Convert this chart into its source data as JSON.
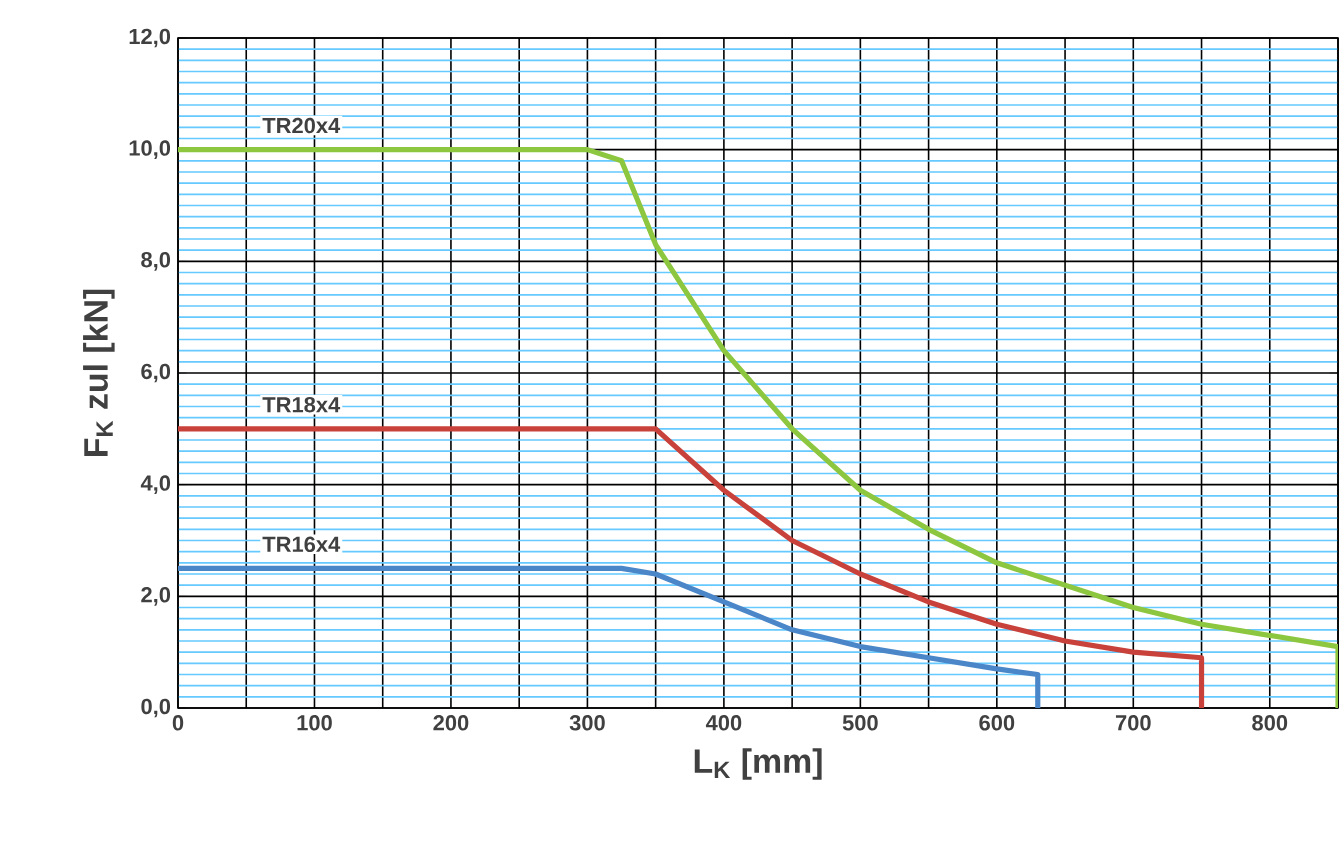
{
  "chart_data": {
    "type": "line",
    "xlabel": "L$_{K}$ [mm]",
    "ylabel": "F$_{K}$ zul [kN]",
    "xlim": [
      0,
      850
    ],
    "ylim": [
      0,
      12
    ],
    "xticks": [
      0,
      {
        "value": 50,
        "label": null
      },
      100,
      {
        "value": 150,
        "label": null
      },
      200,
      {
        "value": 250,
        "label": null
      },
      300,
      {
        "value": 350,
        "label": null
      },
      400,
      {
        "value": 450,
        "label": null
      },
      500,
      {
        "value": 550,
        "label": null
      },
      600,
      {
        "value": 650,
        "label": null
      },
      700,
      {
        "value": 750,
        "label": null
      },
      800,
      {
        "value": 850,
        "label": null
      }
    ],
    "yticks": [
      {
        "value": 0,
        "label": "0,0"
      },
      {
        "value": 0.2,
        "label": null
      },
      {
        "value": 0.4,
        "label": null
      },
      {
        "value": 0.6,
        "label": null
      },
      {
        "value": 0.8,
        "label": null
      },
      {
        "value": 1.0,
        "label": null
      },
      {
        "value": 1.2,
        "label": null
      },
      {
        "value": 1.4,
        "label": null
      },
      {
        "value": 1.6,
        "label": null
      },
      {
        "value": 1.8,
        "label": null
      },
      {
        "value": 2,
        "label": "2,0"
      },
      {
        "value": 2.2,
        "label": null
      },
      {
        "value": 2.4,
        "label": null
      },
      {
        "value": 2.6,
        "label": null
      },
      {
        "value": 2.8,
        "label": null
      },
      {
        "value": 3.0,
        "label": null
      },
      {
        "value": 3.2,
        "label": null
      },
      {
        "value": 3.4,
        "label": null
      },
      {
        "value": 3.6,
        "label": null
      },
      {
        "value": 3.8,
        "label": null
      },
      {
        "value": 4,
        "label": "4,0"
      },
      {
        "value": 4.2,
        "label": null
      },
      {
        "value": 4.4,
        "label": null
      },
      {
        "value": 4.6,
        "label": null
      },
      {
        "value": 4.8,
        "label": null
      },
      {
        "value": 5.0,
        "label": null
      },
      {
        "value": 5.2,
        "label": null
      },
      {
        "value": 5.4,
        "label": null
      },
      {
        "value": 5.6,
        "label": null
      },
      {
        "value": 5.8,
        "label": null
      },
      {
        "value": 6,
        "label": "6,0"
      },
      {
        "value": 6.2,
        "label": null
      },
      {
        "value": 6.4,
        "label": null
      },
      {
        "value": 6.6,
        "label": null
      },
      {
        "value": 6.8,
        "label": null
      },
      {
        "value": 7.0,
        "label": null
      },
      {
        "value": 7.2,
        "label": null
      },
      {
        "value": 7.4,
        "label": null
      },
      {
        "value": 7.6,
        "label": null
      },
      {
        "value": 7.8,
        "label": null
      },
      {
        "value": 8,
        "label": "8,0"
      },
      {
        "value": 8.2,
        "label": null
      },
      {
        "value": 8.4,
        "label": null
      },
      {
        "value": 8.6,
        "label": null
      },
      {
        "value": 8.8,
        "label": null
      },
      {
        "value": 9.0,
        "label": null
      },
      {
        "value": 9.2,
        "label": null
      },
      {
        "value": 9.4,
        "label": null
      },
      {
        "value": 9.6,
        "label": null
      },
      {
        "value": 9.8,
        "label": null
      },
      {
        "value": 10,
        "label": "10,0"
      },
      {
        "value": 10.2,
        "label": null
      },
      {
        "value": 10.4,
        "label": null
      },
      {
        "value": 10.6,
        "label": null
      },
      {
        "value": 10.8,
        "label": null
      },
      {
        "value": 11.0,
        "label": null
      },
      {
        "value": 11.2,
        "label": null
      },
      {
        "value": 11.4,
        "label": null
      },
      {
        "value": 11.6,
        "label": null
      },
      {
        "value": 11.8,
        "label": null
      },
      {
        "value": 12,
        "label": "12,0"
      }
    ],
    "grid": true,
    "marker": "none",
    "line_style": "solid",
    "series": [
      {
        "name": "TR20x4",
        "color": "#8dc63f",
        "x": [
          0,
          300,
          325,
          350,
          400,
          450,
          500,
          550,
          600,
          650,
          700,
          750,
          800,
          850,
          850
        ],
        "values": [
          10,
          10,
          9.8,
          8.3,
          6.4,
          5.0,
          3.9,
          3.2,
          2.6,
          2.2,
          1.8,
          1.5,
          1.3,
          1.1,
          0
        ]
      },
      {
        "name": "TR18x4",
        "color": "#c8413a",
        "x": [
          0,
          350,
          400,
          450,
          500,
          550,
          600,
          650,
          700,
          750,
          750
        ],
        "values": [
          5,
          5,
          3.9,
          3.0,
          2.4,
          1.9,
          1.5,
          1.2,
          1.0,
          0.9,
          0
        ]
      },
      {
        "name": "TR16x4",
        "color": "#4a86c8",
        "x": [
          0,
          325,
          350,
          400,
          450,
          500,
          550,
          600,
          630,
          630
        ],
        "values": [
          2.5,
          2.5,
          2.4,
          1.9,
          1.4,
          1.1,
          0.9,
          0.7,
          0.6,
          0
        ]
      }
    ]
  }
}
